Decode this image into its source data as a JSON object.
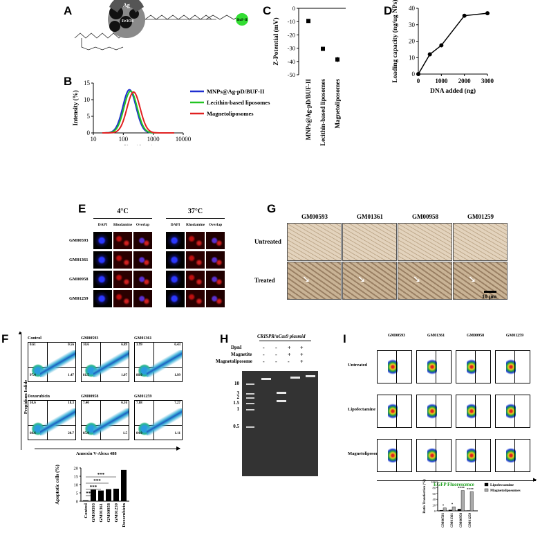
{
  "panels": {
    "A": {
      "label": "A",
      "core_label": "Fe3O4",
      "shell_label": "Ag",
      "peptide_label": "BuF-II",
      "repeat_label": "12"
    },
    "B": {
      "label": "B",
      "chart_data": {
        "type": "line",
        "xscale": "log",
        "xlim": [
          10,
          10000
        ],
        "ylim": [
          0,
          15
        ],
        "xticks": [
          "10",
          "100",
          "1000",
          "10000"
        ],
        "yticks": [
          "0",
          "5",
          "10",
          "15"
        ],
        "xlabel": "Size (d.nm)",
        "ylabel": "Intensity (%)",
        "legend_position": "right",
        "series": [
          {
            "name": "MNPs@Ag-pD/BUF-II",
            "color": "#1f2fd0",
            "peak_x": 160,
            "peak_y": 13.0
          },
          {
            "name": "Lecithin-based liposomes",
            "color": "#22c422",
            "peak_x": 175,
            "peak_y": 12.6
          },
          {
            "name": "Magnetoliposomes",
            "color": "#e02020",
            "peak_x": 220,
            "peak_y": 12.3
          }
        ]
      }
    },
    "C": {
      "label": "C",
      "chart_data": {
        "type": "scatter",
        "ylabel": "Z-Potential (mV)",
        "ylim": [
          -50,
          0
        ],
        "yticks": [
          "0",
          "-10",
          "-20",
          "-30",
          "-40",
          "-50"
        ],
        "categories": [
          "MNPs@Ag-pD/BUF-II",
          "Lecithin-based liposomes",
          "Magnetoliposomes"
        ],
        "values": [
          -9.5,
          -30.5,
          -38.5
        ],
        "errors": [
          0.5,
          0.5,
          2
        ]
      }
    },
    "D": {
      "label": "D",
      "chart_data": {
        "type": "line",
        "xlabel": "DNA added (ng)",
        "ylabel": "Loading capacity (ng/ug NPs)",
        "xlim": [
          0,
          3000
        ],
        "ylim": [
          0,
          40
        ],
        "xticks": [
          "0",
          "1000",
          "2000",
          "3000"
        ],
        "yticks": [
          "0",
          "10",
          "20",
          "30",
          "40"
        ],
        "x": [
          0,
          500,
          1000,
          2000,
          3000
        ],
        "y": [
          0,
          12,
          17.5,
          35.5,
          37
        ]
      }
    },
    "E": {
      "label": "E",
      "temps": [
        "4°C",
        "37°C"
      ],
      "channels": [
        "DAPI",
        "Rhodamine",
        "Overlap"
      ],
      "rows": [
        "GM00593",
        "GM01361",
        "GM00958",
        "GM01259"
      ]
    },
    "G": {
      "label": "G",
      "columns": [
        "GM00593",
        "GM01361",
        "GM00958",
        "GM01259"
      ],
      "rows": [
        "Untreated",
        "Treated"
      ],
      "scale_label": "10 μm"
    },
    "F": {
      "label": "F",
      "plots": [
        {
          "title": "Control",
          "q1": "0.61",
          "q2": "0.56",
          "q3": "1.47",
          "q4": "97.4"
        },
        {
          "title": "GM00593",
          "q1": "10.6",
          "q2": "6.89",
          "q3": "1.07",
          "q4": "81.5"
        },
        {
          "title": "GM01361",
          "q1": "3.99",
          "q2": "6.43",
          "q3": "1.99",
          "q4": "88.0"
        },
        {
          "title": "Doxorubicin",
          "q1": "10.6",
          "q2": "18.3",
          "q3": "20.7",
          "q4": "60.6"
        },
        {
          "title": "GM00958",
          "q1": "7.40",
          "q2": "6.16",
          "q3": "1.5",
          "q4": "85.0"
        },
        {
          "title": "GM01259",
          "q1": "7.88",
          "q2": "7.27",
          "q3": "1.11",
          "q4": "84.0"
        }
      ],
      "yaxis_label": "Propidium Iodide",
      "xaxis_label": "Annexin V-Alexa 488",
      "chart_data": {
        "type": "bar",
        "ylabel": "Apoptotic cells (%)",
        "ylim": [
          0,
          20
        ],
        "yticks": [
          "0",
          "5",
          "10",
          "15",
          "20"
        ],
        "categories": [
          "Control",
          "GM00593",
          "GM01361",
          "GM00958",
          "GM01259",
          "Doxorubicin"
        ],
        "values": [
          0.5,
          6.9,
          6.4,
          7.2,
          7.5,
          18.8
        ],
        "significance": [
          "***",
          "***",
          "***",
          "***"
        ]
      }
    },
    "H": {
      "label": "H",
      "title": "CRISPR/nCas9 plasmid",
      "row_labels": [
        "DpnI",
        "Magnetite",
        "Magnetoliposome"
      ],
      "signs": [
        [
          "-",
          "-",
          "+",
          "+"
        ],
        [
          "-",
          "-",
          "+",
          "+"
        ],
        [
          "-",
          "-",
          "-",
          "+"
        ]
      ],
      "ladder": [
        "10",
        "3",
        "2",
        "1.5",
        "1",
        "0.5"
      ]
    },
    "I": {
      "label": "I",
      "columns": [
        "GM00593",
        "GM01361",
        "GM00958",
        "GM01259"
      ],
      "rows": [
        "Untreated",
        "Lipofectamine",
        "Magnetoliposomes"
      ],
      "xaxis_label": "EGFP Fluorescence",
      "chart_data": {
        "type": "bar",
        "ylabel": "Ratio Transfection (%)",
        "ylim": [
          0,
          100
        ],
        "yticks": [
          "0",
          "20",
          "40",
          "60",
          "80",
          "100"
        ],
        "categories": [
          "GM00593",
          "GM01361",
          "GM00958",
          "GM01259"
        ],
        "series": [
          {
            "name": "Lipofectamine",
            "values": [
              2,
              3,
              6,
              1
            ]
          },
          {
            "name": "Magnetoliposomes",
            "values": [
              10,
              14,
              70,
              66
            ]
          }
        ],
        "significance": [
          "*",
          "*",
          "****",
          "****"
        ]
      }
    }
  }
}
